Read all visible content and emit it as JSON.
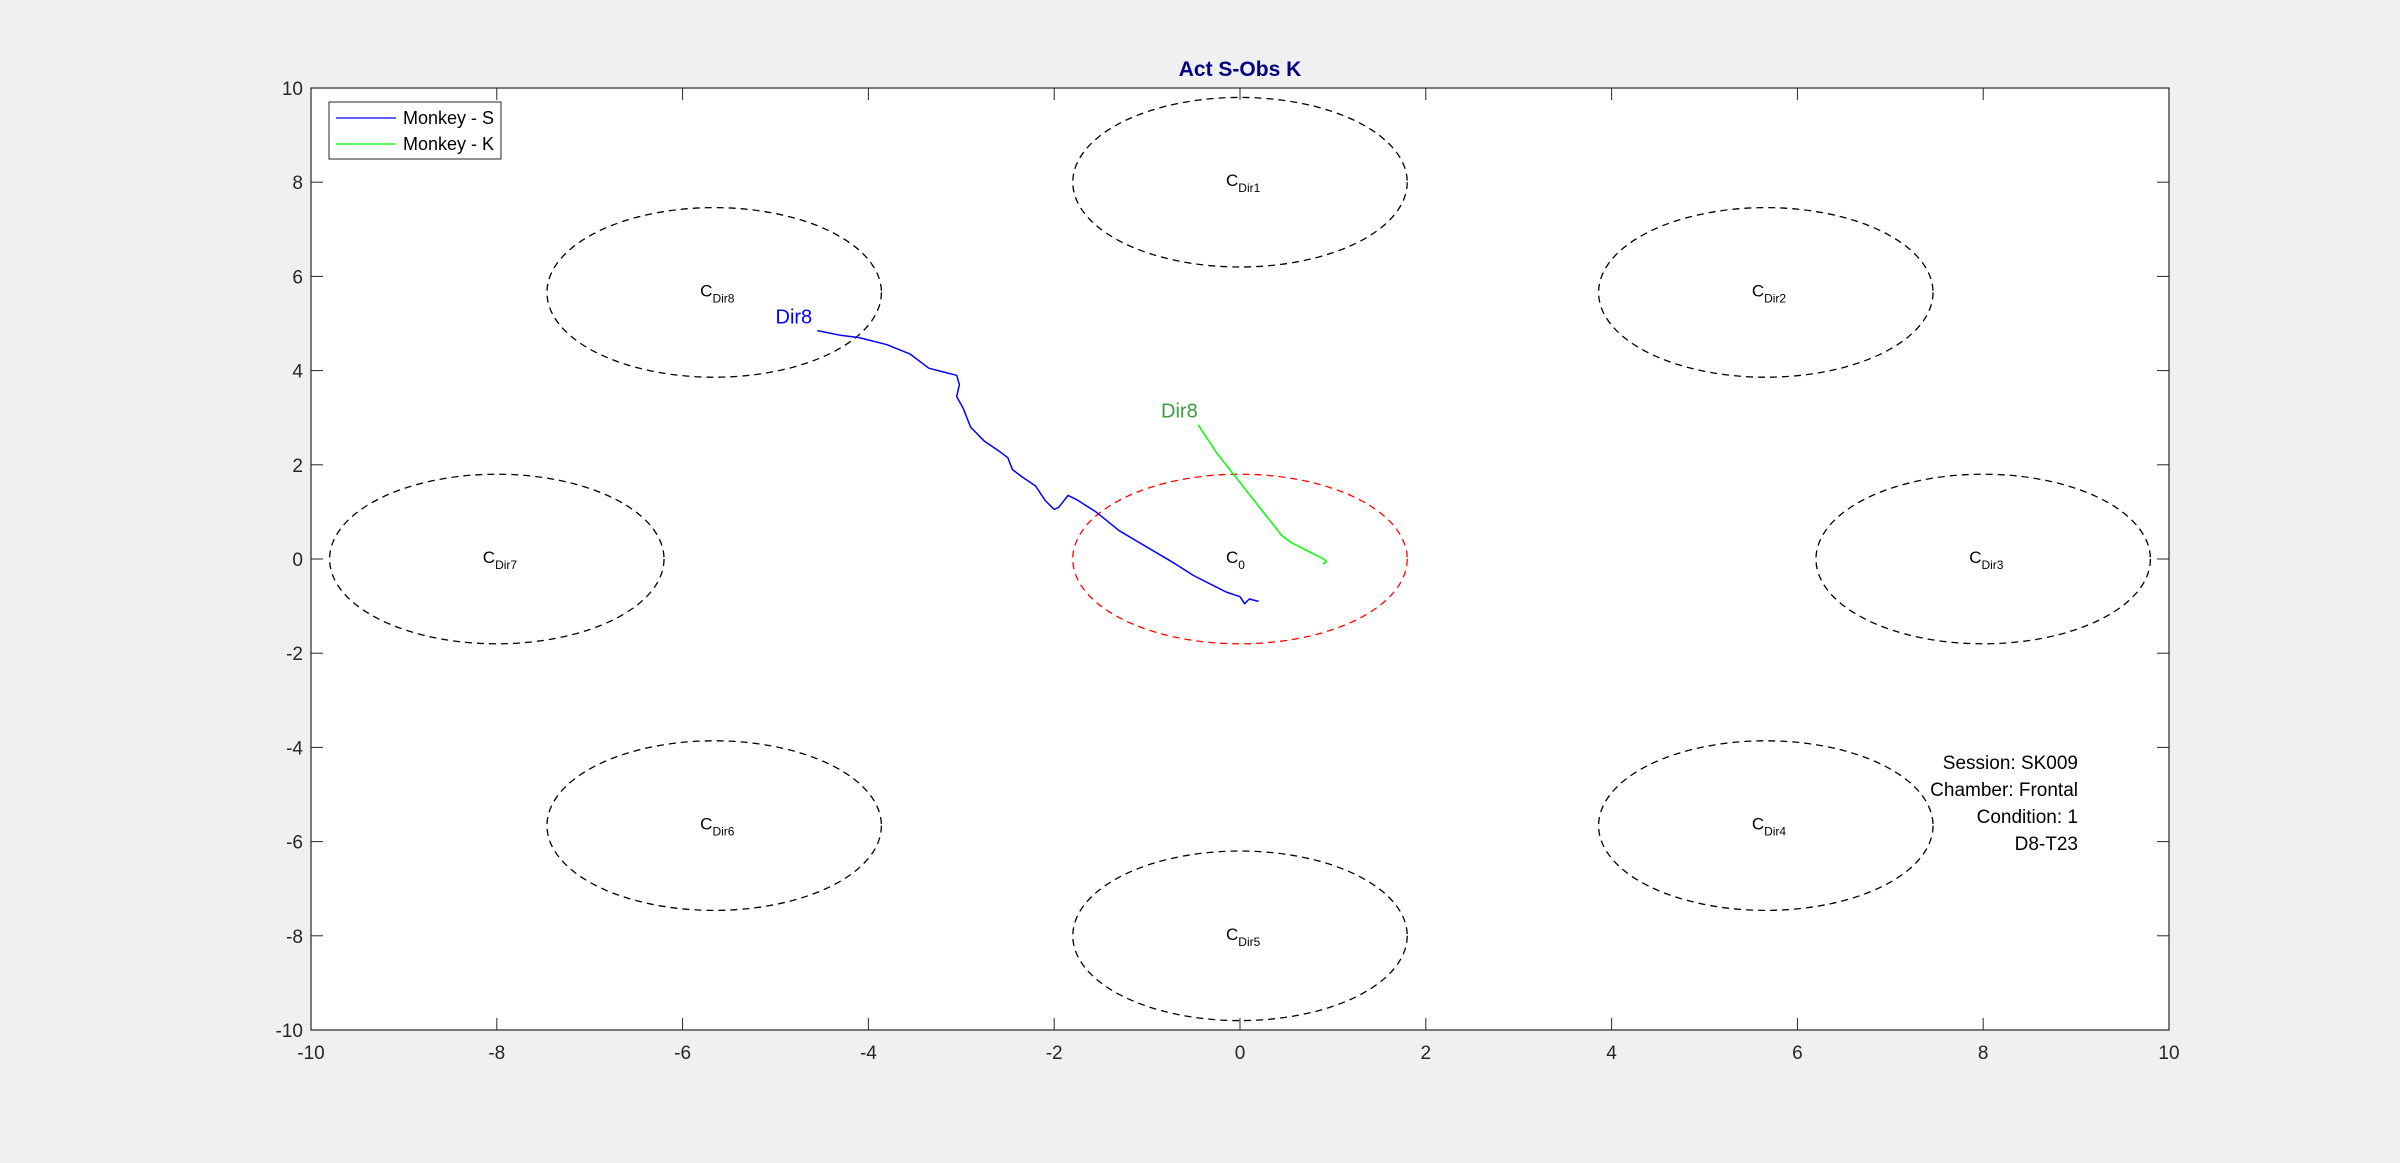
{
  "chart_data": {
    "type": "line",
    "title": "Act S-Obs K",
    "xlabel": "",
    "ylabel": "",
    "xlim": [
      -10,
      10
    ],
    "ylim": [
      -10,
      10
    ],
    "xticks": [
      -10,
      -8,
      -6,
      -4,
      -2,
      0,
      2,
      4,
      6,
      8,
      10
    ],
    "yticks": [
      -10,
      -8,
      -6,
      -4,
      -2,
      0,
      2,
      4,
      6,
      8,
      10
    ],
    "grid": false,
    "legend": {
      "placement": "top-left",
      "entries": [
        {
          "label": "Monkey - S",
          "color": "#0000ff"
        },
        {
          "label": "Monkey - K",
          "color": "#00ff00"
        }
      ]
    },
    "targets": [
      {
        "base": "C",
        "sub": "0",
        "cx": 0,
        "cy": 0,
        "rx": 1.8,
        "ry": 1.8,
        "color": "#ff0000"
      },
      {
        "base": "C",
        "sub": "Dir1",
        "cx": 0,
        "cy": 8,
        "rx": 1.8,
        "ry": 1.8,
        "color": "#000000"
      },
      {
        "base": "C",
        "sub": "Dir2",
        "cx": 5.66,
        "cy": 5.66,
        "rx": 1.8,
        "ry": 1.8,
        "color": "#000000"
      },
      {
        "base": "C",
        "sub": "Dir3",
        "cx": 8,
        "cy": 0,
        "rx": 1.8,
        "ry": 1.8,
        "color": "#000000"
      },
      {
        "base": "C",
        "sub": "Dir4",
        "cx": 5.66,
        "cy": -5.66,
        "rx": 1.8,
        "ry": 1.8,
        "color": "#000000"
      },
      {
        "base": "C",
        "sub": "Dir5",
        "cx": 0,
        "cy": -8,
        "rx": 1.8,
        "ry": 1.8,
        "color": "#000000"
      },
      {
        "base": "C",
        "sub": "Dir6",
        "cx": -5.66,
        "cy": -5.66,
        "rx": 1.8,
        "ry": 1.8,
        "color": "#000000"
      },
      {
        "base": "C",
        "sub": "Dir7",
        "cx": -8,
        "cy": 0,
        "rx": 1.8,
        "ry": 1.8,
        "color": "#000000"
      },
      {
        "base": "C",
        "sub": "Dir8",
        "cx": -5.66,
        "cy": 5.66,
        "rx": 1.8,
        "ry": 1.8,
        "color": "#000000"
      }
    ],
    "series": [
      {
        "name": "Monkey - S",
        "color": "#0000ff",
        "label": "Dir8",
        "label_color": "#0000ff",
        "label_at": [
          -5.0,
          5.0
        ],
        "x": [
          -4.55,
          -4.3,
          -4.1,
          -3.8,
          -3.55,
          -3.35,
          -3.15,
          -3.05,
          -3.02,
          -3.05,
          -2.98,
          -2.9,
          -2.75,
          -2.6,
          -2.5,
          -2.45,
          -2.35,
          -2.2,
          -2.1,
          -2.0,
          -1.95,
          -1.85,
          -1.75,
          -1.55,
          -1.3,
          -1.0,
          -0.7,
          -0.5,
          -0.3,
          -0.15,
          0.0,
          0.05,
          0.1,
          0.2
        ],
        "y": [
          4.85,
          4.75,
          4.7,
          4.55,
          4.35,
          4.05,
          3.95,
          3.9,
          3.7,
          3.45,
          3.2,
          2.8,
          2.5,
          2.3,
          2.15,
          1.9,
          1.75,
          1.55,
          1.25,
          1.05,
          1.1,
          1.35,
          1.25,
          1.0,
          0.6,
          0.25,
          -0.1,
          -0.35,
          -0.55,
          -0.7,
          -0.8,
          -0.95,
          -0.85,
          -0.9
        ]
      },
      {
        "name": "Monkey - K",
        "color": "#00ff00",
        "label": "Dir8",
        "label_color": "#3c9c3c",
        "label_at": [
          -0.85,
          3.0
        ],
        "x": [
          -0.45,
          -0.35,
          -0.25,
          -0.15,
          -0.05,
          0.05,
          0.15,
          0.25,
          0.35,
          0.45,
          0.55,
          0.65,
          0.75,
          0.8,
          0.85,
          0.9,
          0.93,
          0.9,
          0.92
        ],
        "y": [
          2.85,
          2.55,
          2.25,
          2.0,
          1.75,
          1.5,
          1.25,
          1.0,
          0.75,
          0.5,
          0.35,
          0.25,
          0.15,
          0.1,
          0.05,
          0.0,
          -0.05,
          -0.1,
          -0.08
        ]
      }
    ],
    "annotations": [
      "Session: SK009",
      "Chamber: Frontal",
      "Condition: 1",
      "D8-T23"
    ]
  }
}
